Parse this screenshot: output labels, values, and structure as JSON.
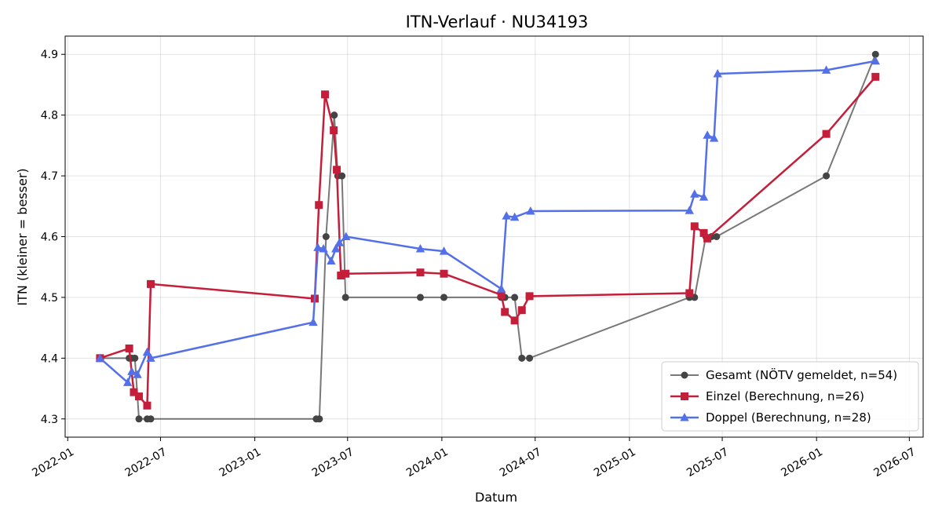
{
  "chart_data": {
    "type": "line",
    "title": "ITN-Verlauf · NU34193",
    "xlabel": "Datum",
    "ylabel": "ITN  (kleiner = besser)",
    "x_axis_type": "date",
    "xlim": [
      "2021-12-27",
      "2026-07-28"
    ],
    "ylim": [
      4.27,
      4.93
    ],
    "x_ticks": [
      "2022-01-01",
      "2022-07-01",
      "2023-01-01",
      "2023-07-01",
      "2024-01-01",
      "2024-07-01",
      "2025-01-01",
      "2025-07-01",
      "2026-01-01",
      "2026-07-01"
    ],
    "x_tick_labels": [
      "2022-01",
      "2022-07",
      "2023-01",
      "2023-07",
      "2024-01",
      "2024-07",
      "2025-01",
      "2025-07",
      "2026-01",
      "2026-07"
    ],
    "y_ticks": [
      4.3,
      4.4,
      4.5,
      4.6,
      4.7,
      4.8,
      4.9
    ],
    "y_tick_labels": [
      "4.3",
      "4.4",
      "4.5",
      "4.6",
      "4.7",
      "4.8",
      "4.9"
    ],
    "grid": true,
    "legend_position": "bottom-right",
    "series": [
      {
        "name": "Gesamt (NÖTV gemeldet, n=54)",
        "color": "#444444",
        "marker": "circle",
        "points": [
          {
            "x": "2022-03-05",
            "y": 4.4
          },
          {
            "x": "2022-05-01",
            "y": 4.4
          },
          {
            "x": "2022-05-06",
            "y": 4.4
          },
          {
            "x": "2022-05-12",
            "y": 4.4
          },
          {
            "x": "2022-05-20",
            "y": 4.3
          },
          {
            "x": "2022-06-05",
            "y": 4.3
          },
          {
            "x": "2022-06-12",
            "y": 4.3
          },
          {
            "x": "2023-05-01",
            "y": 4.3
          },
          {
            "x": "2023-05-07",
            "y": 4.3
          },
          {
            "x": "2023-05-20",
            "y": 4.6
          },
          {
            "x": "2023-06-05",
            "y": 4.8
          },
          {
            "x": "2023-06-12",
            "y": 4.7
          },
          {
            "x": "2023-06-20",
            "y": 4.7
          },
          {
            "x": "2023-06-27",
            "y": 4.5
          },
          {
            "x": "2023-11-20",
            "y": 4.5
          },
          {
            "x": "2024-01-05",
            "y": 4.5
          },
          {
            "x": "2024-04-26",
            "y": 4.5
          },
          {
            "x": "2024-05-03",
            "y": 4.5
          },
          {
            "x": "2024-05-22",
            "y": 4.5
          },
          {
            "x": "2024-06-05",
            "y": 4.4
          },
          {
            "x": "2024-06-20",
            "y": 4.4
          },
          {
            "x": "2025-04-28",
            "y": 4.5
          },
          {
            "x": "2025-05-08",
            "y": 4.5
          },
          {
            "x": "2025-05-30",
            "y": 4.6
          },
          {
            "x": "2025-06-10",
            "y": 4.6
          },
          {
            "x": "2025-06-20",
            "y": 4.6
          },
          {
            "x": "2026-01-20",
            "y": 4.7
          },
          {
            "x": "2026-04-26",
            "y": 4.9
          }
        ]
      },
      {
        "name": "Einzel (Berechnung, n=26)",
        "color": "#c41e3a",
        "marker": "square",
        "points": [
          {
            "x": "2022-03-05",
            "y": 4.4
          },
          {
            "x": "2022-05-01",
            "y": 4.416
          },
          {
            "x": "2022-05-10",
            "y": 4.344
          },
          {
            "x": "2022-05-20",
            "y": 4.337
          },
          {
            "x": "2022-06-05",
            "y": 4.322
          },
          {
            "x": "2022-06-12",
            "y": 4.522
          },
          {
            "x": "2023-04-28",
            "y": 4.498
          },
          {
            "x": "2023-05-06",
            "y": 4.652
          },
          {
            "x": "2023-05-18",
            "y": 4.834
          },
          {
            "x": "2023-06-04",
            "y": 4.775
          },
          {
            "x": "2023-06-10",
            "y": 4.71
          },
          {
            "x": "2023-06-18",
            "y": 4.536
          },
          {
            "x": "2023-06-27",
            "y": 4.539
          },
          {
            "x": "2023-11-20",
            "y": 4.541
          },
          {
            "x": "2024-01-05",
            "y": 4.539
          },
          {
            "x": "2024-04-26",
            "y": 4.504
          },
          {
            "x": "2024-05-03",
            "y": 4.476
          },
          {
            "x": "2024-05-22",
            "y": 4.462
          },
          {
            "x": "2024-06-05",
            "y": 4.479
          },
          {
            "x": "2024-06-20",
            "y": 4.502
          },
          {
            "x": "2025-04-28",
            "y": 4.507
          },
          {
            "x": "2025-05-08",
            "y": 4.617
          },
          {
            "x": "2025-05-26",
            "y": 4.606
          },
          {
            "x": "2025-06-02",
            "y": 4.597
          },
          {
            "x": "2026-01-20",
            "y": 4.769
          },
          {
            "x": "2026-04-26",
            "y": 4.863
          }
        ]
      },
      {
        "name": "Doppel (Berechnung, n=28)",
        "color": "#5470e8",
        "marker": "triangle",
        "points": [
          {
            "x": "2022-03-05",
            "y": 4.4
          },
          {
            "x": "2022-04-28",
            "y": 4.36
          },
          {
            "x": "2022-05-06",
            "y": 4.378
          },
          {
            "x": "2022-05-17",
            "y": 4.373
          },
          {
            "x": "2022-06-05",
            "y": 4.41
          },
          {
            "x": "2022-06-12",
            "y": 4.4
          },
          {
            "x": "2023-04-25",
            "y": 4.459
          },
          {
            "x": "2023-05-04",
            "y": 4.582
          },
          {
            "x": "2023-05-15",
            "y": 4.58
          },
          {
            "x": "2023-05-30",
            "y": 4.56
          },
          {
            "x": "2023-06-08",
            "y": 4.58
          },
          {
            "x": "2023-06-15",
            "y": 4.59
          },
          {
            "x": "2023-06-28",
            "y": 4.6
          },
          {
            "x": "2023-11-20",
            "y": 4.58
          },
          {
            "x": "2024-01-05",
            "y": 4.576
          },
          {
            "x": "2024-04-26",
            "y": 4.514
          },
          {
            "x": "2024-05-06",
            "y": 4.634
          },
          {
            "x": "2024-05-22",
            "y": 4.632
          },
          {
            "x": "2024-06-22",
            "y": 4.642
          },
          {
            "x": "2025-04-28",
            "y": 4.643
          },
          {
            "x": "2025-05-08",
            "y": 4.67
          },
          {
            "x": "2025-05-26",
            "y": 4.665
          },
          {
            "x": "2025-06-02",
            "y": 4.767
          },
          {
            "x": "2025-06-15",
            "y": 4.762
          },
          {
            "x": "2025-06-22",
            "y": 4.868
          },
          {
            "x": "2026-01-20",
            "y": 4.874
          },
          {
            "x": "2026-04-26",
            "y": 4.889
          }
        ]
      }
    ]
  }
}
